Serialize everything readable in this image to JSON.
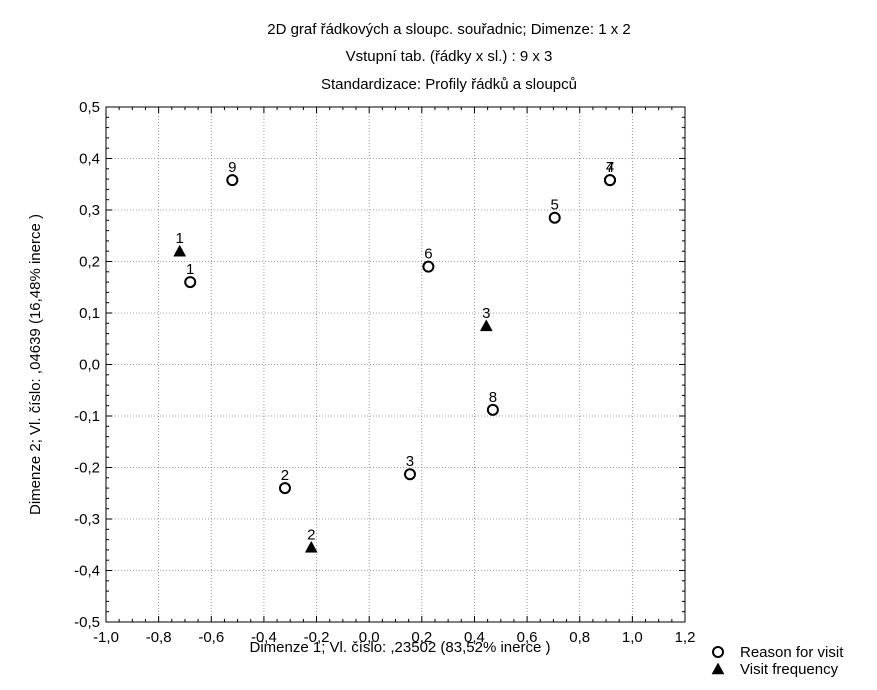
{
  "chart_data": {
    "type": "scatter",
    "title_lines": [
      "2D graf řádkových a sloupc. souřadnic; Dimenze:    1 x  2",
      "Vstupní tab. (řádky x sl.) : 9 x 3",
      "Standardizace:  Profily řádků a sloupců"
    ],
    "xlabel": "Dimenze   1; Vl. číslo: ,23502 (83,52% inerce     )",
    "ylabel": "Dimenze   2; Vl. číslo: ,04639 (16,48% inerce     )",
    "xlim": [
      -1.0,
      1.2
    ],
    "ylim": [
      -0.5,
      0.5
    ],
    "x_ticks": [
      "-1,0",
      "-0,8",
      "-0,6",
      "-0,4",
      "-0,2",
      "0,0",
      "0,2",
      "0,4",
      "0,6",
      "0,8",
      "1,0",
      "1,2"
    ],
    "y_ticks": [
      "0,5",
      "0,4",
      "0,3",
      "0,2",
      "0,1",
      "0,0",
      "-0,1",
      "-0,2",
      "-0,3",
      "-0,4",
      "-0,5"
    ],
    "grid": true,
    "legend_position": "bottom-right",
    "series": [
      {
        "name": "Reason for visit",
        "marker": "circle",
        "color": "#000000",
        "points": [
          {
            "label": "1",
            "x": -0.68,
            "y": 0.16
          },
          {
            "label": "2",
            "x": -0.32,
            "y": -0.24
          },
          {
            "label": "3",
            "x": 0.155,
            "y": -0.213
          },
          {
            "label": "4",
            "x": 0.915,
            "y": 0.358
          },
          {
            "label": "5",
            "x": 0.705,
            "y": 0.285
          },
          {
            "label": "6",
            "x": 0.225,
            "y": 0.19
          },
          {
            "label": "7",
            "x": 0.915,
            "y": 0.358
          },
          {
            "label": "8",
            "x": 0.47,
            "y": -0.088
          },
          {
            "label": "9",
            "x": -0.52,
            "y": 0.358
          }
        ]
      },
      {
        "name": "Visit frequency",
        "marker": "triangle",
        "color": "#000000",
        "points": [
          {
            "label": "1",
            "x": -0.72,
            "y": 0.22
          },
          {
            "label": "2",
            "x": -0.22,
            "y": -0.355
          },
          {
            "label": "3",
            "x": 0.445,
            "y": 0.075
          }
        ]
      }
    ]
  }
}
